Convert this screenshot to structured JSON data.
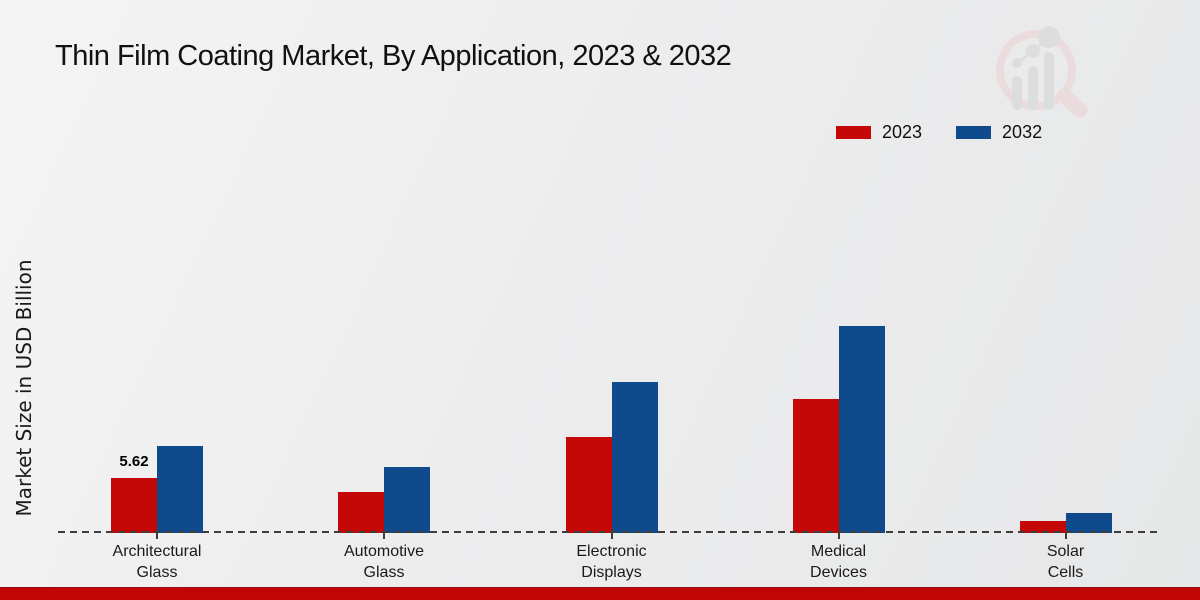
{
  "title": "Thin Film Coating Market, By Application, 2023 & 2032",
  "y_axis_label": "Market Size in USD Billion",
  "legend": {
    "items": [
      {
        "label": "2023",
        "color": "#c40707"
      },
      {
        "label": "2032",
        "color": "#0e4a8c"
      }
    ]
  },
  "annotation": {
    "text": "5.62",
    "category": "Architectural Glass",
    "series": "2023"
  },
  "watermark_icon": "magnifier-growth-chart-logo-icon",
  "accent_bar_color": "#c10505",
  "axis_line_color": "#3d3d3d",
  "chart_data": {
    "type": "bar",
    "title": "Thin Film Coating Market, By Application, 2023 & 2032",
    "xlabel": "",
    "ylabel": "Market Size in USD Billion",
    "categories": [
      "Architectural Glass",
      "Automotive Glass",
      "Electronic Displays",
      "Medical Devices",
      "Solar Cells"
    ],
    "series": [
      {
        "name": "2023",
        "color": "#c40707",
        "values": [
          5.62,
          4.2,
          9.8,
          13.7,
          1.25
        ]
      },
      {
        "name": "2032",
        "color": "#0e4a8c",
        "values": [
          8.9,
          6.75,
          15.4,
          21.2,
          2.05
        ]
      }
    ],
    "data_labels": [
      {
        "series": "2023",
        "category": "Architectural Glass",
        "value": "5.62"
      }
    ],
    "ylim": [
      0,
      24
    ],
    "grid": false,
    "legend_position": "upper right",
    "baseline_style": "dashed",
    "y_ticks_visible": false
  }
}
